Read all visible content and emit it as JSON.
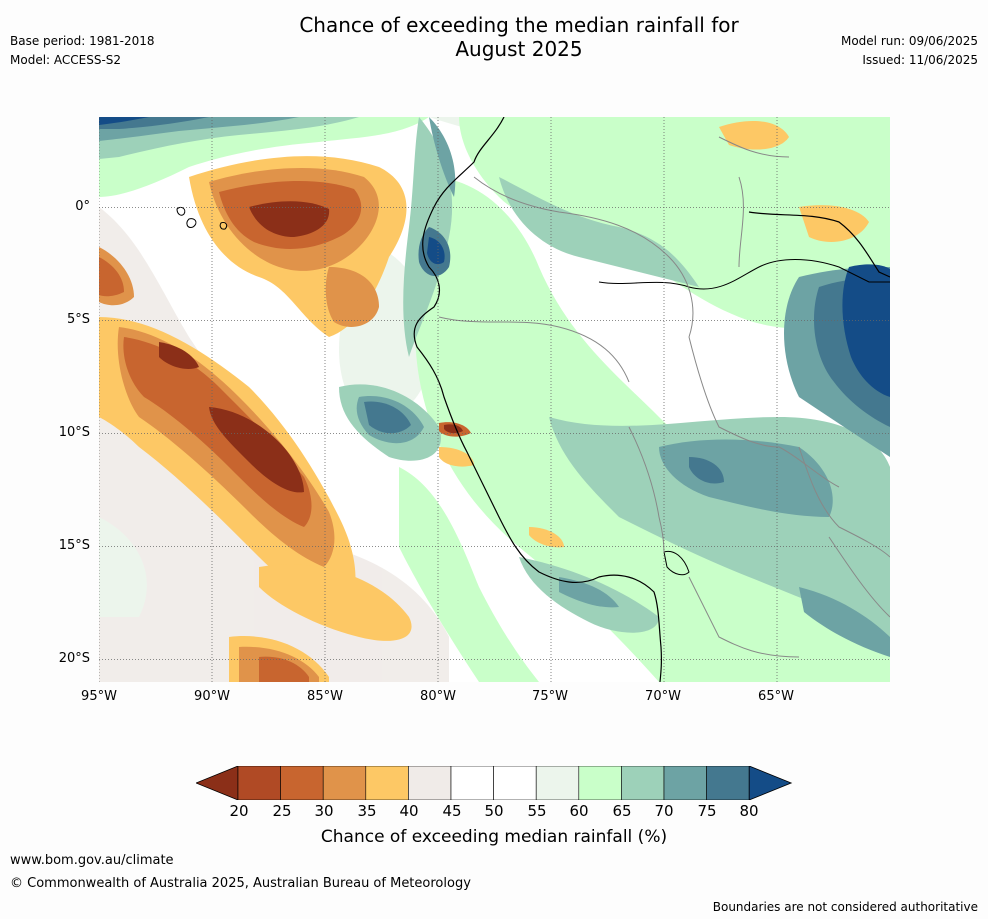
{
  "title_line1": "Chance of exceeding the median rainfall for",
  "title_line2": "August 2025",
  "meta": {
    "base_period": "Base period: 1981-2018",
    "model": "Model: ACCESS-S2",
    "model_run": "Model run: 09/06/2025",
    "issued": "Issued: 11/06/2025"
  },
  "map": {
    "lon_range": [
      -95,
      -60
    ],
    "lat_range": [
      -21,
      4
    ],
    "lat_ticks": [
      {
        "value": 0,
        "label": "0°"
      },
      {
        "value": -5,
        "label": "5°S"
      },
      {
        "value": -10,
        "label": "10°S"
      },
      {
        "value": -15,
        "label": "15°S"
      },
      {
        "value": -20,
        "label": "20°S"
      }
    ],
    "lon_ticks": [
      {
        "value": -95,
        "label": "95°W"
      },
      {
        "value": -90,
        "label": "90°W"
      },
      {
        "value": -85,
        "label": "85°W"
      },
      {
        "value": -80,
        "label": "80°W"
      },
      {
        "value": -75,
        "label": "75°W"
      },
      {
        "value": -70,
        "label": "70°W"
      },
      {
        "value": -65,
        "label": "65°W"
      }
    ],
    "gridlines": "dotted"
  },
  "colorbar": {
    "ticks": [
      "20",
      "25",
      "30",
      "35",
      "40",
      "45",
      "50",
      "55",
      "60",
      "65",
      "70",
      "75",
      "80"
    ],
    "colors": [
      "#8b2f18",
      "#b04a25",
      "#c8652f",
      "#e0934a",
      "#fdc865",
      "#f0ebe8",
      "#ffffff",
      "#ffffff",
      "#ecf5ec",
      "#c9ffc9",
      "#9dd1b9",
      "#6da3a4",
      "#44788f",
      "#144c87"
    ],
    "label": "Chance of exceeding median rainfall (%)"
  },
  "footer": {
    "url": "www.bom.gov.au/climate",
    "copyright": "© Commonwealth of Australia 2025, Australian Bureau of Meteorology",
    "disclaimer": "Boundaries are not considered authoritative"
  }
}
